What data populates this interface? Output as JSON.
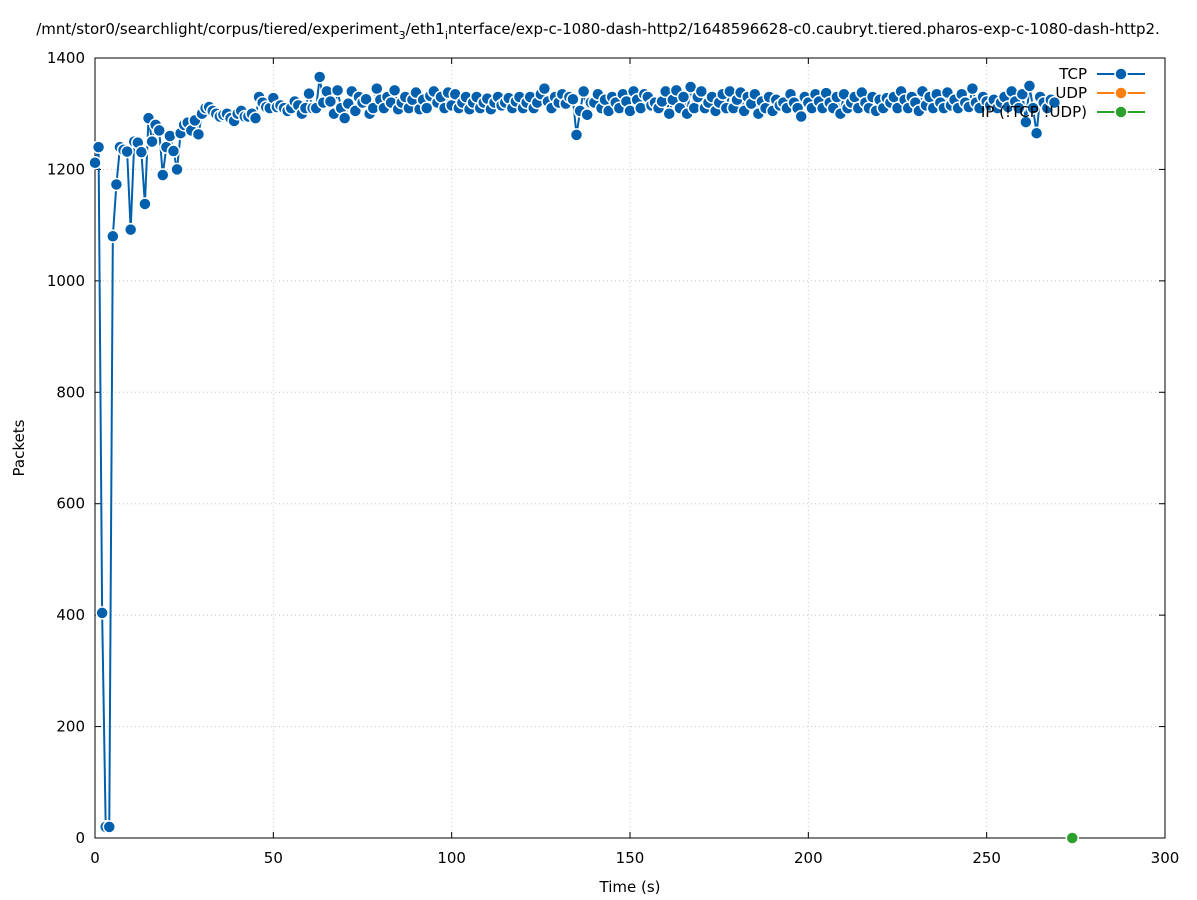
{
  "chart_data": {
    "type": "line",
    "title": "/mnt/stor0/searchlight/corpus/tiered/experiment",
    "title_sub1": "3",
    "title_mid": "/eth1",
    "title_sub2": "i",
    "title_end": "nterface/exp-c-1080-dash-http2/1648596628-c0.caubryt.tiered.pharos-exp-c-1080-dash-http2.",
    "xlabel": "Time (s)",
    "ylabel": "Packets",
    "xlim": [
      0,
      300
    ],
    "ylim": [
      0,
      1400
    ],
    "x_ticks": [
      "0",
      "50",
      "100",
      "150",
      "200",
      "250",
      "300"
    ],
    "y_ticks": [
      "0",
      "200",
      "400",
      "600",
      "800",
      "1000",
      "1200",
      "1400"
    ],
    "grid": true,
    "legend_position": "top-right",
    "series": [
      {
        "name": "TCP",
        "color": "#0060ad",
        "x": [
          0,
          1,
          2,
          3,
          4,
          5,
          6,
          7,
          8,
          9,
          10,
          11,
          12,
          13,
          14,
          15,
          16,
          17,
          18,
          19,
          20,
          21,
          22,
          23,
          24,
          25,
          26,
          27,
          28,
          29,
          30,
          31,
          32,
          33,
          34,
          35,
          36,
          37,
          38,
          39,
          40,
          41,
          42,
          43,
          44,
          45,
          46,
          47,
          48,
          49,
          50,
          51,
          52,
          53,
          54,
          55,
          56,
          57,
          58,
          59,
          60,
          61,
          62,
          63,
          64,
          65,
          66,
          67,
          68,
          69,
          70,
          71,
          72,
          73,
          74,
          75,
          76,
          77,
          78,
          79,
          80,
          81,
          82,
          83,
          84,
          85,
          86,
          87,
          88,
          89,
          90,
          91,
          92,
          93,
          94,
          95,
          96,
          97,
          98,
          99,
          100,
          101,
          102,
          103,
          104,
          105,
          106,
          107,
          108,
          109,
          110,
          111,
          112,
          113,
          114,
          115,
          116,
          117,
          118,
          119,
          120,
          121,
          122,
          123,
          124,
          125,
          126,
          127,
          128,
          129,
          130,
          131,
          132,
          133,
          134,
          135,
          136,
          137,
          138,
          139,
          140,
          141,
          142,
          143,
          144,
          145,
          146,
          147,
          148,
          149,
          150,
          151,
          152,
          153,
          154,
          155,
          156,
          157,
          158,
          159,
          160,
          161,
          162,
          163,
          164,
          165,
          166,
          167,
          168,
          169,
          170,
          171,
          172,
          173,
          174,
          175,
          176,
          177,
          178,
          179,
          180,
          181,
          182,
          183,
          184,
          185,
          186,
          187,
          188,
          189,
          190,
          191,
          192,
          193,
          194,
          195,
          196,
          197,
          198,
          199,
          200,
          201,
          202,
          203,
          204,
          205,
          206,
          207,
          208,
          209,
          210,
          211,
          212,
          213,
          214,
          215,
          216,
          217,
          218,
          219,
          220,
          221,
          222,
          223,
          224,
          225,
          226,
          227,
          228,
          229,
          230,
          231,
          232,
          233,
          234,
          235,
          236,
          237,
          238,
          239,
          240,
          241,
          242,
          243,
          244,
          245,
          246,
          247,
          248,
          249,
          250,
          251,
          252,
          253,
          254,
          255,
          256,
          257,
          258,
          259,
          260,
          261,
          262,
          263,
          264,
          265,
          266,
          267,
          268,
          269
        ],
        "y": [
          1212,
          1240,
          404,
          20,
          20,
          1080,
          1173,
          1240,
          1235,
          1232,
          1092,
          1250,
          1248,
          1231,
          1138,
          1292,
          1250,
          1280,
          1270,
          1190,
          1240,
          1260,
          1233,
          1200,
          1265,
          1280,
          1284,
          1270,
          1288,
          1263,
          1300,
          1310,
          1312,
          1305,
          1300,
          1295,
          1298,
          1300,
          1292,
          1287,
          1300,
          1305,
          1295,
          1295,
          1300,
          1292,
          1330,
          1320,
          1312,
          1310,
          1328,
          1312,
          1315,
          1310,
          1305,
          1310,
          1322,
          1315,
          1300,
          1310,
          1336,
          1310,
          1310,
          1366,
          1320,
          1340,
          1322,
          1300,
          1342,
          1310,
          1292,
          1318,
          1340,
          1305,
          1330,
          1320,
          1326,
          1300,
          1310,
          1345,
          1325,
          1310,
          1330,
          1320,
          1342,
          1308,
          1320,
          1330,
          1310,
          1325,
          1338,
          1308,
          1325,
          1310,
          1332,
          1340,
          1320,
          1330,
          1310,
          1338,
          1315,
          1335,
          1310,
          1320,
          1330,
          1308,
          1320,
          1330,
          1310,
          1320,
          1327,
          1308,
          1320,
          1330,
          1315,
          1320,
          1328,
          1310,
          1322,
          1330,
          1310,
          1320,
          1330,
          1310,
          1320,
          1335,
          1345,
          1322,
          1310,
          1330,
          1320,
          1335,
          1318,
          1330,
          1326,
          1262,
          1305,
          1340,
          1298,
          1320,
          1320,
          1335,
          1310,
          1325,
          1305,
          1330,
          1320,
          1310,
          1335,
          1322,
          1305,
          1340,
          1325,
          1310,
          1335,
          1330,
          1315,
          1320,
          1310,
          1322,
          1340,
          1300,
          1325,
          1342,
          1310,
          1330,
          1300,
          1348,
          1310,
          1330,
          1340,
          1310,
          1320,
          1330,
          1305,
          1320,
          1335,
          1310,
          1340,
          1310,
          1325,
          1338,
          1305,
          1330,
          1318,
          1335,
          1300,
          1322,
          1310,
          1330,
          1305,
          1325,
          1315,
          1320,
          1310,
          1335,
          1320,
          1310,
          1295,
          1330,
          1320,
          1310,
          1335,
          1322,
          1310,
          1337,
          1320,
          1310,
          1330,
          1300,
          1335,
          1310,
          1320,
          1330,
          1310,
          1338,
          1320,
          1310,
          1330,
          1305,
          1325,
          1310,
          1328,
          1320,
          1330,
          1310,
          1340,
          1325,
          1310,
          1330,
          1320,
          1305,
          1340,
          1315,
          1330,
          1310,
          1335,
          1320,
          1310,
          1338,
          1315,
          1325,
          1310,
          1335,
          1320,
          1312,
          1345,
          1320,
          1310,
          1330,
          1322,
          1315,
          1325,
          1310,
          1320,
          1330,
          1312,
          1340,
          1322,
          1310,
          1335,
          1285,
          1350,
          1310,
          1265,
          1330,
          1320,
          1310,
          1325,
          1320
        ]
      },
      {
        "name": "UDP",
        "color": "#ff7f0e",
        "x": [],
        "y": []
      },
      {
        "name": "IP (!TCP !UDP)",
        "color": "#2ca02c",
        "x": [
          274
        ],
        "y": [
          0
        ]
      }
    ]
  }
}
